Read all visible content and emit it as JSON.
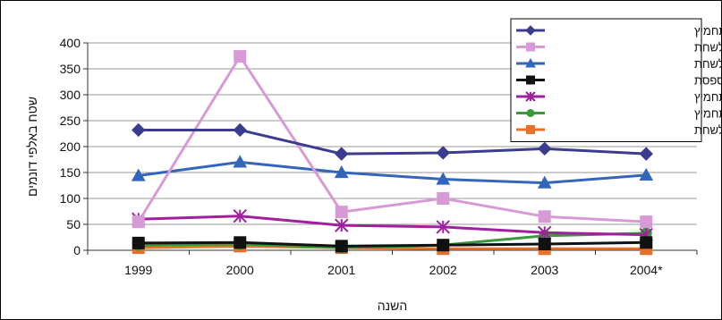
{
  "chart_data": {
    "type": "line",
    "title": "",
    "xlabel": "השנה",
    "ylabel": "שטח באלפי דונמים",
    "categories": [
      "1999",
      "2000",
      "2001",
      "2002",
      "2003",
      "2004*"
    ],
    "ylim": [
      0,
      400
    ],
    "yticks": [
      0,
      50,
      100,
      150,
      200,
      250,
      300,
      350,
      400
    ],
    "grid": "horizontal",
    "legend_position": "top-right",
    "series": [
      {
        "name": "חיטה לתחמיץ",
        "color": "#3b3b8f",
        "marker": "diamond",
        "values": [
          232,
          232,
          186,
          188,
          196,
          186
        ]
      },
      {
        "name": "דגני חורף לשחת",
        "color": "#d89ad6",
        "marker": "square",
        "values": [
          55,
          374,
          74,
          100,
          65,
          55
        ]
      },
      {
        "name": "קטניות חורף לשחת",
        "color": "#3366bb",
        "marker": "triangle",
        "values": [
          144,
          170,
          150,
          137,
          130,
          145
        ]
      },
      {
        "name": "אספסת",
        "color": "#111111",
        "marker": "square",
        "values": [
          14,
          15,
          8,
          10,
          12,
          15
        ]
      },
      {
        "name": "תירס לתחמיץ",
        "color": "#a020a0",
        "marker": "star",
        "values": [
          60,
          66,
          48,
          45,
          34,
          30
        ]
      },
      {
        "name": "סורגום לתחמיץ",
        "color": "#3a9a3a",
        "marker": "circle",
        "values": [
          10,
          12,
          5,
          10,
          28,
          33
        ]
      },
      {
        "name": "דגני קיץ לשחת",
        "color": "#e8702a",
        "marker": "square",
        "values": [
          5,
          8,
          5,
          3,
          3,
          3
        ]
      }
    ]
  }
}
